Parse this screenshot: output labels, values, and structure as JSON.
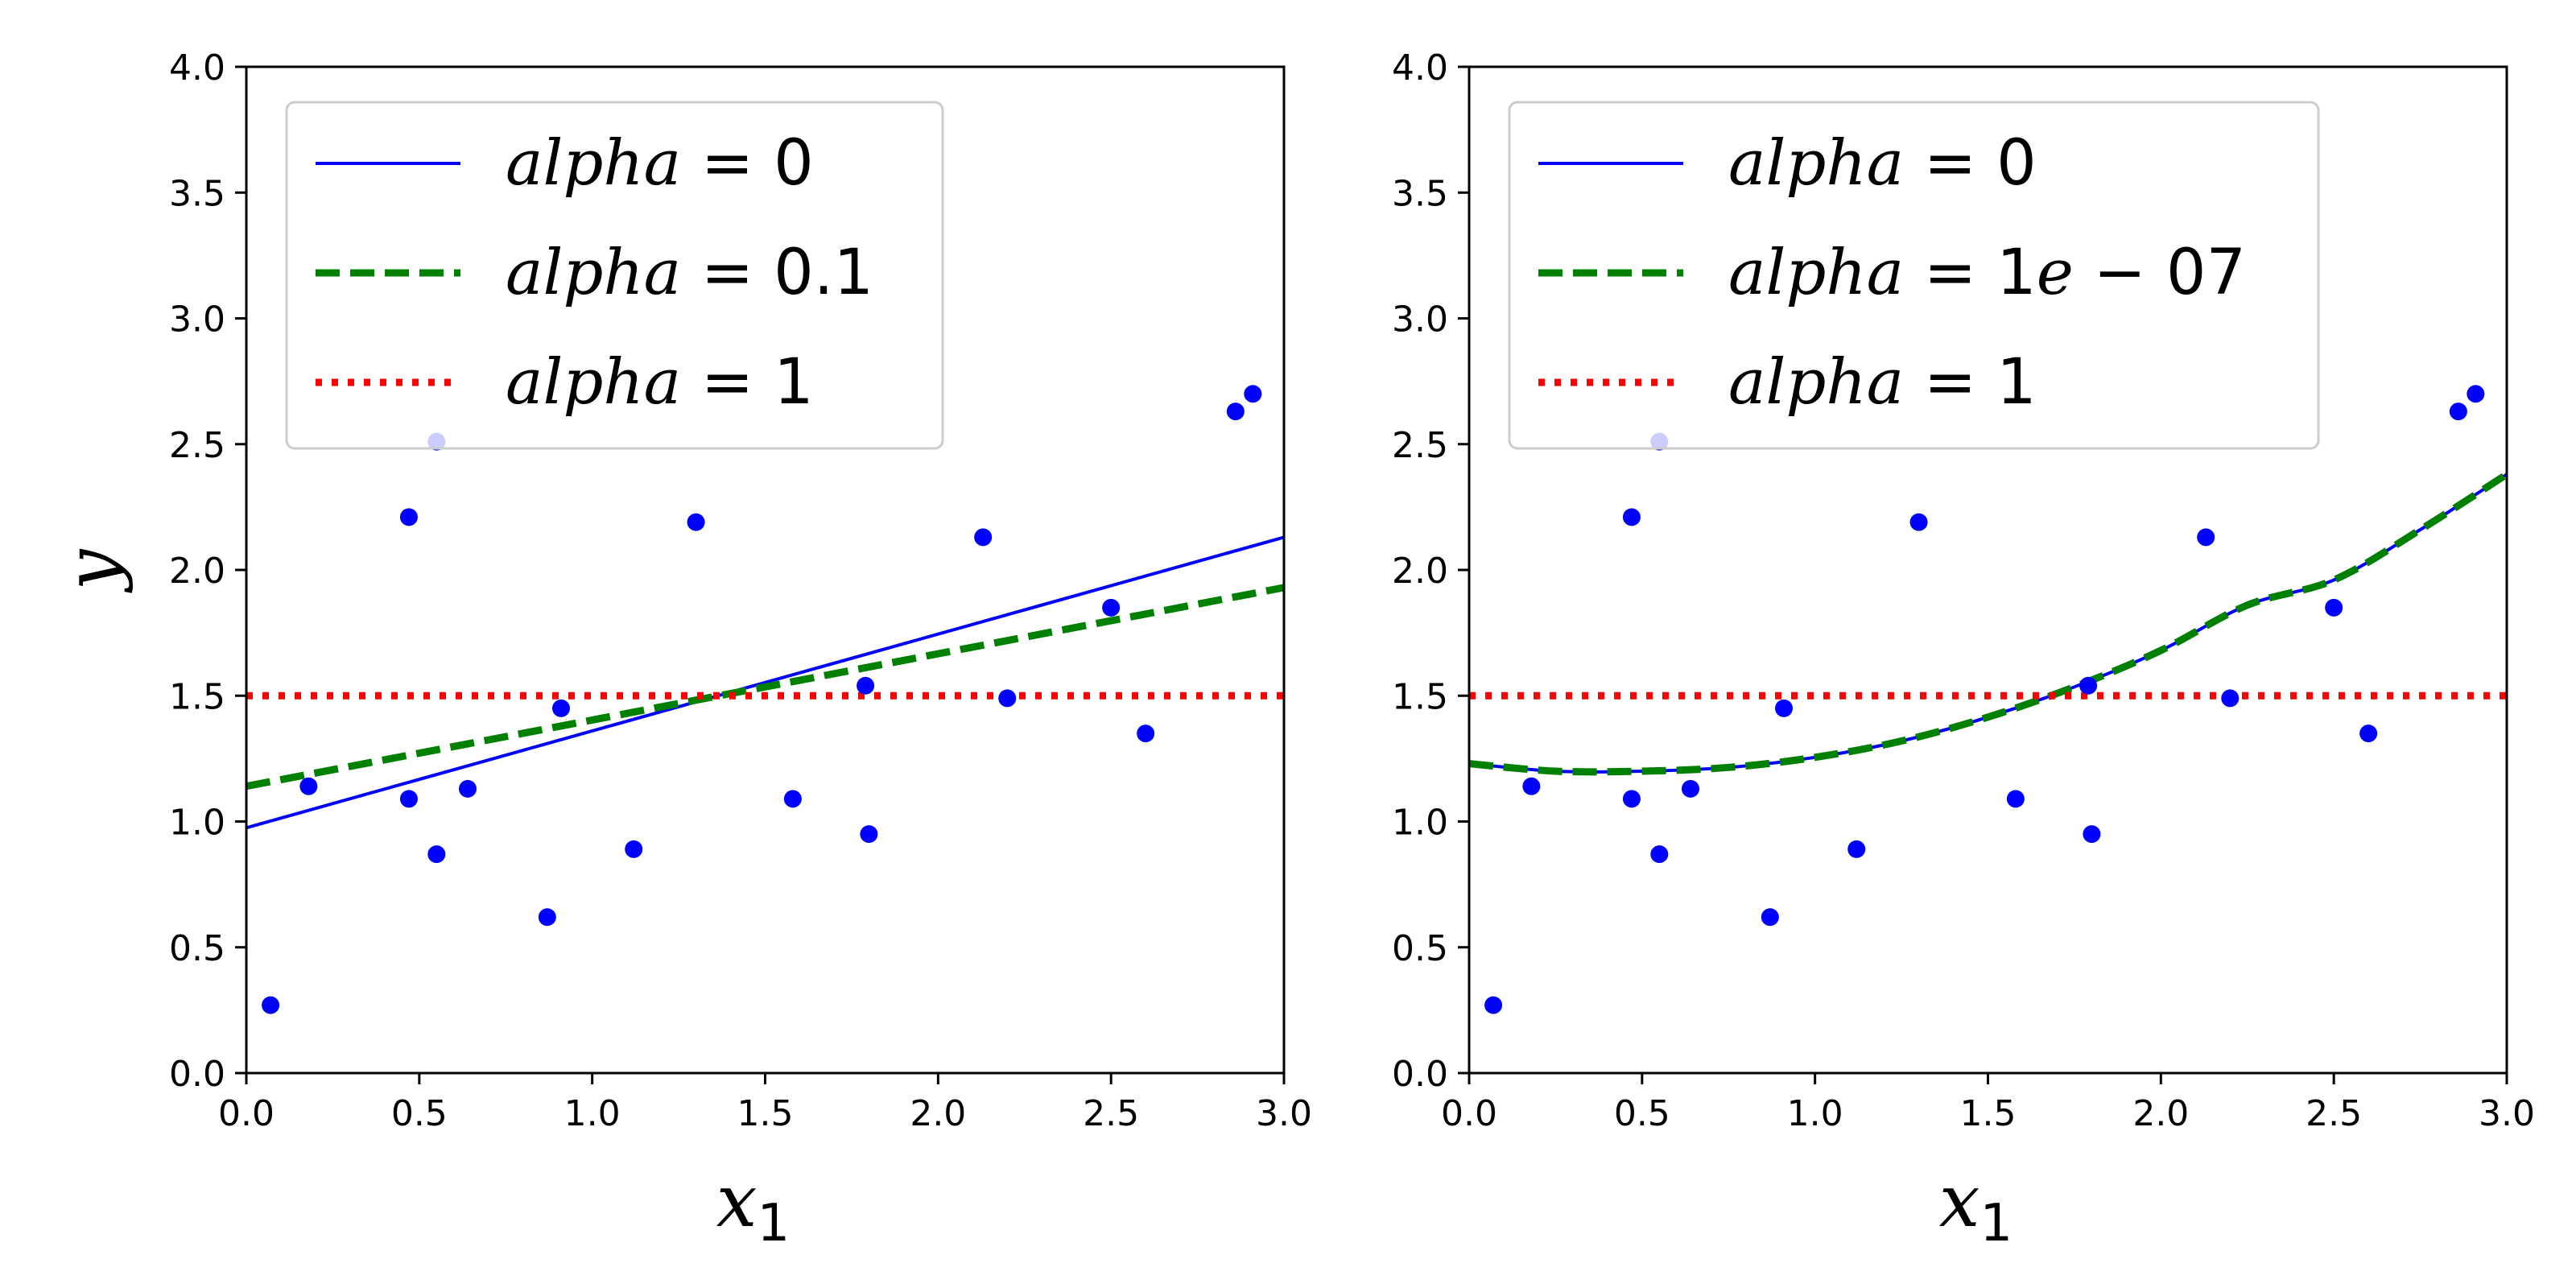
{
  "chart_data": [
    {
      "type": "scatter",
      "xlabel_main": "x",
      "xlabel_sub": "1",
      "ylabel": "y",
      "xlim": [
        0.0,
        3.0
      ],
      "ylim": [
        0.0,
        4.0
      ],
      "xticks": [
        "0.0",
        "0.5",
        "1.0",
        "1.5",
        "2.0",
        "2.5",
        "3.0"
      ],
      "yticks": [
        "0.0",
        "0.5",
        "1.0",
        "1.5",
        "2.0",
        "2.5",
        "3.0",
        "3.5",
        "4.0"
      ],
      "legend_position": "top-left",
      "points": {
        "color": "#0000ff",
        "x": [
          0.07,
          0.18,
          0.47,
          0.47,
          0.55,
          0.55,
          0.64,
          0.87,
          0.91,
          1.12,
          1.3,
          1.58,
          1.79,
          1.8,
          2.13,
          2.2,
          2.5,
          2.6,
          2.86,
          2.91
        ],
        "y": [
          0.27,
          1.14,
          2.21,
          1.09,
          0.87,
          2.51,
          1.13,
          0.62,
          1.45,
          0.89,
          2.19,
          1.09,
          1.54,
          0.95,
          2.13,
          1.49,
          1.85,
          1.35,
          2.63,
          2.7
        ]
      },
      "series": [
        {
          "name_prefix": "alpha",
          "name_value": "0",
          "color": "#0000ff",
          "style": "solid",
          "model": "linear",
          "x": [
            0.0,
            3.0
          ],
          "y": [
            0.975,
            2.13
          ]
        },
        {
          "name_prefix": "alpha",
          "name_value": "0.1",
          "color": "#008000",
          "style": "dashed",
          "model": "linear",
          "x": [
            0.0,
            3.0
          ],
          "y": [
            1.14,
            1.93
          ]
        },
        {
          "name_prefix": "alpha",
          "name_value": "1",
          "color": "#ff0000",
          "style": "dotted",
          "model": "linear",
          "x": [
            0.0,
            3.0
          ],
          "y": [
            1.5,
            1.5
          ]
        }
      ]
    },
    {
      "type": "scatter",
      "xlabel_main": "x",
      "xlabel_sub": "1",
      "ylabel": "",
      "xlim": [
        0.0,
        3.0
      ],
      "ylim": [
        0.0,
        4.0
      ],
      "xticks": [
        "0.0",
        "0.5",
        "1.0",
        "1.5",
        "2.0",
        "2.5",
        "3.0"
      ],
      "yticks": [
        "0.0",
        "0.5",
        "1.0",
        "1.5",
        "2.0",
        "2.5",
        "3.0",
        "3.5",
        "4.0"
      ],
      "legend_position": "top-left",
      "points": {
        "color": "#0000ff",
        "x": [
          0.07,
          0.18,
          0.47,
          0.47,
          0.55,
          0.55,
          0.64,
          0.87,
          0.91,
          1.12,
          1.3,
          1.58,
          1.79,
          1.8,
          2.13,
          2.2,
          2.5,
          2.6,
          2.86,
          2.91
        ],
        "y": [
          0.27,
          1.14,
          2.21,
          1.09,
          0.87,
          2.51,
          1.13,
          0.62,
          1.45,
          0.89,
          2.19,
          1.09,
          1.54,
          0.95,
          2.13,
          1.49,
          1.85,
          1.35,
          2.63,
          2.7
        ]
      },
      "series": [
        {
          "name_prefix": "alpha",
          "name_value": "0",
          "color": "#0000ff",
          "style": "solid",
          "model": "curve",
          "x": [
            0.0,
            0.25,
            0.5,
            0.75,
            1.0,
            1.25,
            1.5,
            1.75,
            2.0,
            2.25,
            2.5,
            2.75,
            3.0
          ],
          "y": [
            1.23,
            1.2,
            1.2,
            1.215,
            1.255,
            1.32,
            1.415,
            1.535,
            1.68,
            1.86,
            1.96,
            2.16,
            2.38
          ]
        },
        {
          "name_prefix": "alpha",
          "name_value": "1e-07",
          "color": "#008000",
          "style": "dashed",
          "model": "curve",
          "x": [
            0.0,
            0.25,
            0.5,
            0.75,
            1.0,
            1.25,
            1.5,
            1.75,
            2.0,
            2.25,
            2.5,
            2.75,
            3.0
          ],
          "y": [
            1.23,
            1.2,
            1.2,
            1.215,
            1.255,
            1.32,
            1.415,
            1.535,
            1.68,
            1.86,
            1.96,
            2.16,
            2.38
          ]
        },
        {
          "name_prefix": "alpha",
          "name_value": "1",
          "color": "#ff0000",
          "style": "dotted",
          "model": "linear",
          "x": [
            0.0,
            3.0
          ],
          "y": [
            1.5,
            1.5
          ]
        }
      ]
    }
  ]
}
